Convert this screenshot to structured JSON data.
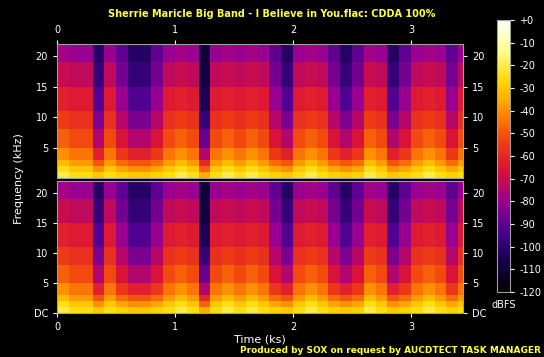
{
  "chart_data": [
    {
      "type": "heatmap",
      "title": "Sherrie Maricle Big Band - I Believe in You.flac: CDDA 100%",
      "y_label": "Frequency (kHz)",
      "xlim": [
        0,
        3.44
      ],
      "ylim": [
        0,
        22.05
      ],
      "xticks": [
        0,
        1,
        2,
        3
      ],
      "yticks": [
        5,
        10,
        15,
        20
      ],
      "x_bins": [
        0,
        0.1,
        0.2,
        0.3,
        0.4,
        0.5,
        0.6,
        0.7,
        0.8,
        0.9,
        1.0,
        1.1,
        1.2,
        1.3,
        1.4,
        1.5,
        1.6,
        1.7,
        1.8,
        1.9,
        2.0,
        2.1,
        2.2,
        2.3,
        2.4,
        2.5,
        2.6,
        2.7,
        2.8,
        2.9,
        3.0,
        3.1,
        3.2,
        3.3,
        3.4,
        3.44
      ],
      "y_bins": [
        0,
        1,
        2,
        3,
        5,
        8,
        11,
        15,
        19,
        22.05
      ],
      "cells": [
        [
          -20,
          -25,
          -32,
          -40,
          -48,
          -55,
          -62,
          -70,
          -78
        ],
        [
          -25,
          -30,
          -38,
          -45,
          -52,
          -58,
          -64,
          -72,
          -80
        ],
        [
          -25,
          -30,
          -38,
          -45,
          -52,
          -58,
          -64,
          -72,
          -80
        ],
        [
          -30,
          -40,
          -50,
          -62,
          -75,
          -85,
          -92,
          -98,
          -102
        ],
        [
          -25,
          -30,
          -38,
          -45,
          -52,
          -58,
          -64,
          -72,
          -80
        ],
        [
          -28,
          -36,
          -46,
          -56,
          -66,
          -74,
          -80,
          -86,
          -90
        ],
        [
          -30,
          -40,
          -50,
          -62,
          -75,
          -85,
          -92,
          -98,
          -102
        ],
        [
          -30,
          -40,
          -50,
          -62,
          -75,
          -85,
          -92,
          -98,
          -102
        ],
        [
          -28,
          -36,
          -46,
          -56,
          -66,
          -74,
          -80,
          -86,
          -90
        ],
        [
          -25,
          -30,
          -38,
          -45,
          -52,
          -58,
          -64,
          -72,
          -80
        ],
        [
          -20,
          -25,
          -32,
          -40,
          -48,
          -55,
          -62,
          -70,
          -78
        ],
        [
          -25,
          -30,
          -38,
          -45,
          -52,
          -58,
          -64,
          -72,
          -80
        ],
        [
          -35,
          -48,
          -60,
          -75,
          -88,
          -98,
          -104,
          -108,
          -110
        ],
        [
          -25,
          -30,
          -38,
          -45,
          -52,
          -58,
          -64,
          -72,
          -80
        ],
        [
          -20,
          -25,
          -32,
          -40,
          -48,
          -55,
          -62,
          -70,
          -78
        ],
        [
          -25,
          -30,
          -38,
          -45,
          -52,
          -58,
          -64,
          -72,
          -80
        ],
        [
          -20,
          -25,
          -32,
          -40,
          -48,
          -55,
          -62,
          -70,
          -78
        ],
        [
          -25,
          -30,
          -38,
          -45,
          -52,
          -58,
          -64,
          -72,
          -80
        ],
        [
          -28,
          -36,
          -46,
          -56,
          -66,
          -74,
          -80,
          -86,
          -90
        ],
        [
          -30,
          -40,
          -50,
          -62,
          -75,
          -85,
          -92,
          -98,
          -102
        ],
        [
          -25,
          -30,
          -38,
          -45,
          -52,
          -58,
          -64,
          -72,
          -80
        ],
        [
          -20,
          -25,
          -32,
          -40,
          -48,
          -55,
          -62,
          -70,
          -78
        ],
        [
          -25,
          -30,
          -38,
          -45,
          -52,
          -58,
          -64,
          -72,
          -80
        ],
        [
          -28,
          -36,
          -46,
          -56,
          -66,
          -74,
          -80,
          -86,
          -90
        ],
        [
          -30,
          -40,
          -50,
          -62,
          -75,
          -85,
          -92,
          -98,
          -102
        ],
        [
          -28,
          -36,
          -46,
          -56,
          -66,
          -74,
          -80,
          -86,
          -90
        ],
        [
          -20,
          -25,
          -32,
          -40,
          -48,
          -55,
          -62,
          -70,
          -78
        ],
        [
          -25,
          -30,
          -38,
          -45,
          -52,
          -58,
          -64,
          -72,
          -80
        ],
        [
          -30,
          -40,
          -50,
          -62,
          -75,
          -85,
          -92,
          -98,
          -102
        ],
        [
          -28,
          -36,
          -46,
          -56,
          -66,
          -74,
          -80,
          -86,
          -90
        ],
        [
          -25,
          -30,
          -38,
          -45,
          -52,
          -58,
          -64,
          -72,
          -80
        ],
        [
          -20,
          -25,
          -32,
          -40,
          -48,
          -55,
          -62,
          -70,
          -78
        ],
        [
          -25,
          -30,
          -38,
          -45,
          -52,
          -58,
          -64,
          -72,
          -80
        ],
        [
          -28,
          -36,
          -46,
          -56,
          -66,
          -74,
          -80,
          -86,
          -90
        ],
        [
          -25,
          -30,
          -38,
          -45,
          -52,
          -58,
          -64,
          -72,
          -80
        ]
      ],
      "colorbar": {
        "range": [
          -120,
          0
        ],
        "label": "dBFS",
        "ticks": [
          {
            "value": 0,
            "label": "+0"
          },
          -10,
          -20,
          -30,
          -40,
          -50,
          -60,
          -70,
          -80,
          -90,
          -100,
          -110,
          -120
        ]
      }
    },
    {
      "type": "heatmap",
      "x_label": "Time (ks)",
      "annotations": [
        "Produced by SOX on request by AUCDTECT TASK MANAGER"
      ],
      "xlim": [
        0,
        3.44
      ],
      "ylim": [
        0,
        22.05
      ],
      "xticks": [
        0,
        1,
        2,
        3
      ],
      "yticks": [
        {
          "value": 0,
          "label": "DC"
        },
        5,
        10,
        15,
        20
      ],
      "x_bins": [
        0,
        0.1,
        0.2,
        0.3,
        0.4,
        0.5,
        0.6,
        0.7,
        0.8,
        0.9,
        1.0,
        1.1,
        1.2,
        1.3,
        1.4,
        1.5,
        1.6,
        1.7,
        1.8,
        1.9,
        2.0,
        2.1,
        2.2,
        2.3,
        2.4,
        2.5,
        2.6,
        2.7,
        2.8,
        2.9,
        3.0,
        3.1,
        3.2,
        3.3,
        3.4,
        3.44
      ],
      "y_bins": [
        0,
        1,
        2,
        3,
        5,
        8,
        11,
        15,
        19,
        22.05
      ],
      "cells": [
        [
          -20,
          -25,
          -32,
          -40,
          -48,
          -55,
          -62,
          -70,
          -78
        ],
        [
          -25,
          -30,
          -38,
          -45,
          -52,
          -58,
          -64,
          -72,
          -80
        ],
        [
          -25,
          -30,
          -38,
          -45,
          -52,
          -58,
          -64,
          -72,
          -80
        ],
        [
          -30,
          -40,
          -50,
          -62,
          -75,
          -85,
          -92,
          -98,
          -102
        ],
        [
          -25,
          -30,
          -38,
          -45,
          -52,
          -58,
          -64,
          -72,
          -80
        ],
        [
          -28,
          -36,
          -46,
          -56,
          -66,
          -74,
          -80,
          -86,
          -90
        ],
        [
          -30,
          -40,
          -50,
          -62,
          -75,
          -85,
          -92,
          -98,
          -102
        ],
        [
          -30,
          -40,
          -50,
          -62,
          -75,
          -85,
          -92,
          -98,
          -102
        ],
        [
          -28,
          -36,
          -46,
          -56,
          -66,
          -74,
          -80,
          -86,
          -90
        ],
        [
          -25,
          -30,
          -38,
          -45,
          -52,
          -58,
          -64,
          -72,
          -80
        ],
        [
          -20,
          -25,
          -32,
          -40,
          -48,
          -55,
          -62,
          -70,
          -78
        ],
        [
          -25,
          -30,
          -38,
          -45,
          -52,
          -58,
          -64,
          -72,
          -80
        ],
        [
          -35,
          -48,
          -60,
          -75,
          -88,
          -98,
          -104,
          -108,
          -110
        ],
        [
          -25,
          -30,
          -38,
          -45,
          -52,
          -58,
          -64,
          -72,
          -80
        ],
        [
          -20,
          -25,
          -32,
          -40,
          -48,
          -55,
          -62,
          -70,
          -78
        ],
        [
          -25,
          -30,
          -38,
          -45,
          -52,
          -58,
          -64,
          -72,
          -80
        ],
        [
          -20,
          -25,
          -32,
          -40,
          -48,
          -55,
          -62,
          -70,
          -78
        ],
        [
          -25,
          -30,
          -38,
          -45,
          -52,
          -58,
          -64,
          -72,
          -80
        ],
        [
          -28,
          -36,
          -46,
          -56,
          -66,
          -74,
          -80,
          -86,
          -90
        ],
        [
          -30,
          -40,
          -50,
          -62,
          -75,
          -85,
          -92,
          -98,
          -102
        ],
        [
          -25,
          -30,
          -38,
          -45,
          -52,
          -58,
          -64,
          -72,
          -80
        ],
        [
          -20,
          -25,
          -32,
          -40,
          -48,
          -55,
          -62,
          -70,
          -78
        ],
        [
          -25,
          -30,
          -38,
          -45,
          -52,
          -58,
          -64,
          -72,
          -80
        ],
        [
          -28,
          -36,
          -46,
          -56,
          -66,
          -74,
          -80,
          -86,
          -90
        ],
        [
          -30,
          -40,
          -50,
          -62,
          -75,
          -85,
          -92,
          -98,
          -102
        ],
        [
          -28,
          -36,
          -46,
          -56,
          -66,
          -74,
          -80,
          -86,
          -90
        ],
        [
          -20,
          -25,
          -32,
          -40,
          -48,
          -55,
          -62,
          -70,
          -78
        ],
        [
          -25,
          -30,
          -38,
          -45,
          -52,
          -58,
          -64,
          -72,
          -80
        ],
        [
          -30,
          -40,
          -50,
          -62,
          -75,
          -85,
          -92,
          -98,
          -102
        ],
        [
          -28,
          -36,
          -46,
          -56,
          -66,
          -74,
          -80,
          -86,
          -90
        ],
        [
          -25,
          -30,
          -38,
          -45,
          -52,
          -58,
          -64,
          -72,
          -80
        ],
        [
          -20,
          -25,
          -32,
          -40,
          -48,
          -55,
          -62,
          -70,
          -78
        ],
        [
          -25,
          -30,
          -38,
          -45,
          -52,
          -58,
          -64,
          -72,
          -80
        ],
        [
          -28,
          -36,
          -46,
          -56,
          -66,
          -74,
          -80,
          -86,
          -90
        ],
        [
          -25,
          -30,
          -38,
          -45,
          -52,
          -58,
          -64,
          -72,
          -80
        ]
      ]
    }
  ]
}
